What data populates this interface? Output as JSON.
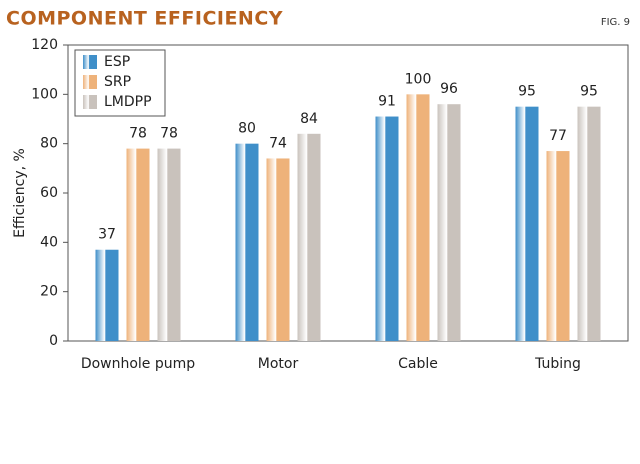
{
  "chart_data": {
    "type": "bar",
    "title": "COMPONENT EFFICIENCY",
    "figure_label": "FIG. 9",
    "y_label": "Efficiency, %",
    "categories": [
      "Downhole pump",
      "Motor",
      "Cable",
      "Tubing"
    ],
    "series": [
      {
        "name": "ESP",
        "color": "#3f8fc9",
        "values": [
          37,
          80,
          91,
          95
        ]
      },
      {
        "name": "SRP",
        "color": "#eeb27a",
        "values": [
          78,
          74,
          100,
          77
        ]
      },
      {
        "name": "LMDPP",
        "color": "#c9c2bc",
        "values": [
          78,
          84,
          96,
          95
        ]
      }
    ],
    "ylim": [
      0,
      120
    ],
    "yticks": [
      0,
      20,
      40,
      60,
      80,
      100,
      120
    ],
    "grid": false,
    "legend": "upper-left"
  }
}
